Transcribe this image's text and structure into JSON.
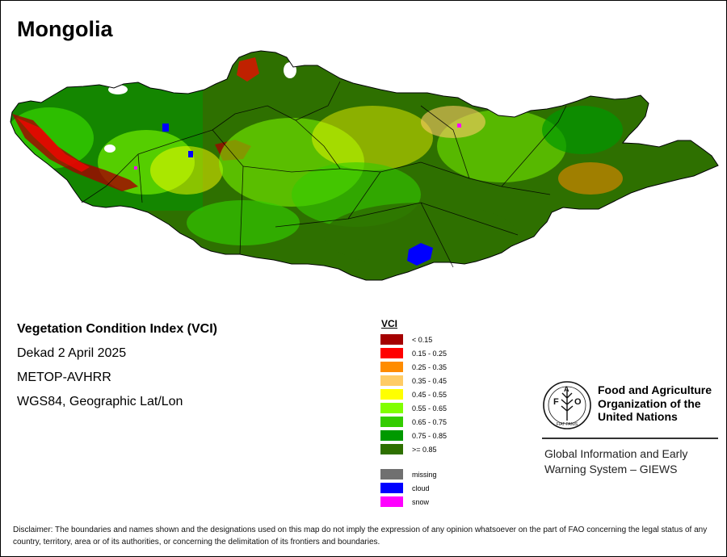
{
  "map": {
    "title": "Mongolia",
    "info": {
      "index_name": "Vegetation Condition Index (VCI)",
      "period": "Dekad 2 April 2025",
      "sensor": "METOP-AVHRR",
      "projection": "WGS84, Geographic Lat/Lon"
    }
  },
  "legend": {
    "title": "VCI",
    "classes": [
      {
        "label": "< 0.15",
        "color": "#a50000"
      },
      {
        "label": "0.15 - 0.25",
        "color": "#ff0000"
      },
      {
        "label": "0.25 - 0.35",
        "color": "#ff8c00"
      },
      {
        "label": "0.35 - 0.45",
        "color": "#ffcc66"
      },
      {
        "label": "0.45 - 0.55",
        "color": "#ffff00"
      },
      {
        "label": "0.55 - 0.65",
        "color": "#80ff00"
      },
      {
        "label": "0.65 - 0.75",
        "color": "#33cc00"
      },
      {
        "label": "0.75 - 0.85",
        "color": "#009900"
      },
      {
        "label": ">= 0.85",
        "color": "#2e7000"
      }
    ],
    "extra": [
      {
        "label": "missing",
        "color": "#707070"
      },
      {
        "label": "cloud",
        "color": "#0000ff"
      },
      {
        "label": "snow",
        "color": "#ff00ff"
      }
    ]
  },
  "organization": {
    "emblem_letters": [
      "F",
      "A",
      "O"
    ],
    "emblem_motto": "FIAT PANIS",
    "name_lines": [
      "Food and Agriculture",
      "Organization of the",
      "United Nations"
    ],
    "system_lines": [
      "Global Information and Early",
      "Warning System – GIEWS"
    ]
  },
  "disclaimer": "Disclaimer: The boundaries and names shown and the designations used on this map do not imply the expression of any opinion whatsoever on the part of FAO concerning the legal status of any country, territory, area or of its authorities, or concerning the delimitation of its frontiers and boundaries."
}
